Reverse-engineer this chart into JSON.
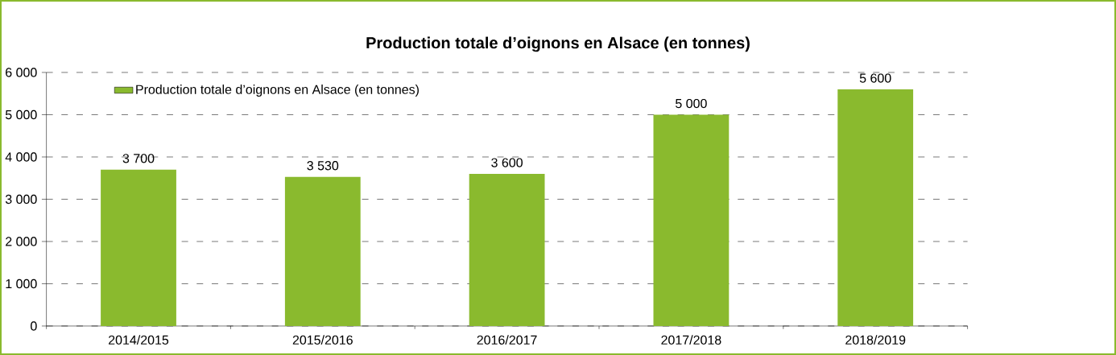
{
  "chart_data": {
    "type": "bar",
    "title": "Production totale d’oignons en Alsace (en tonnes)",
    "categories": [
      "2014/2015",
      "2015/2016",
      "2016/2017",
      "2017/2018",
      "2018/2019"
    ],
    "series": [
      {
        "name": "Production totale d’oignons en Alsace (en tonnes)",
        "color": "#8aba2e",
        "values": [
          3700,
          3530,
          3600,
          5000,
          5600
        ],
        "value_labels": [
          "3 700",
          "3 530",
          "3 600",
          "5 000",
          "5 600"
        ]
      }
    ],
    "ylim": [
      0,
      6000
    ],
    "yticks": [
      {
        "value": 0,
        "label": "0"
      },
      {
        "value": 1000,
        "label": "1 000"
      },
      {
        "value": 2000,
        "label": "2 000"
      },
      {
        "value": 3000,
        "label": "3 000"
      },
      {
        "value": 4000,
        "label": "4 000"
      },
      {
        "value": 5000,
        "label": "5 000"
      },
      {
        "value": 6000,
        "label": "6 000"
      }
    ],
    "grid": "y",
    "legend": "top left"
  }
}
